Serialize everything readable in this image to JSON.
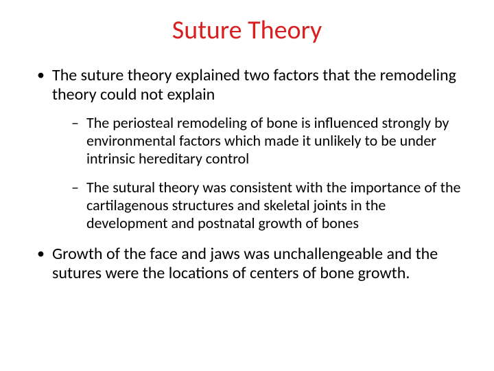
{
  "title": {
    "text": "Suture Theory",
    "color": "#d81e1e",
    "fontsize_pt": 38,
    "font_weight": 400,
    "align": "center"
  },
  "body": {
    "color": "#000000",
    "fontsize_pt_level1": 24,
    "fontsize_pt_level2": 22,
    "bullet_level1": "•",
    "bullet_level2": "–"
  },
  "background_color": "#ffffff",
  "bullets": [
    {
      "text": "The suture theory explained two factors that the remodeling theory could not explain",
      "children": [
        {
          "text": "The periosteal remodeling of bone is influenced strongly by environmental factors which made it unlikely to be under intrinsic hereditary control"
        },
        {
          "text": "The sutural theory was consistent with the importance of the cartilagenous structures and skeletal joints in the development and postnatal growth of bones"
        }
      ]
    },
    {
      "text": "Growth of the face and jaws was unchallengeable and the sutures were the locations of centers of bone growth.",
      "children": []
    }
  ]
}
